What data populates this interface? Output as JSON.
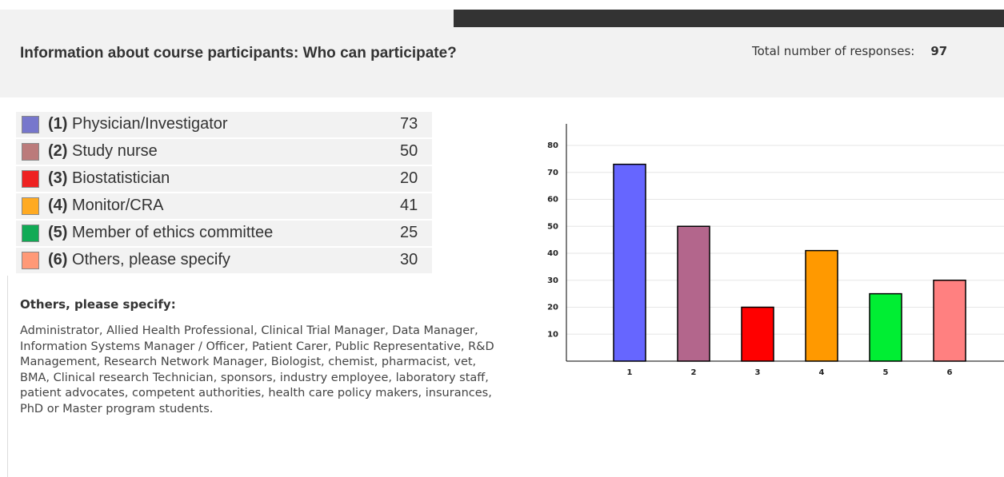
{
  "header": {
    "title": "Information about course participants: Who can participate?",
    "responses_label": "Total number of responses:",
    "responses_value": "97"
  },
  "options": [
    {
      "number": "(1)",
      "label": "Physician/Investigator",
      "count": "73",
      "color": "#7777cc"
    },
    {
      "number": "(2)",
      "label": "Study nurse",
      "count": "50",
      "color": "#bb7b7b"
    },
    {
      "number": "(3)",
      "label": "Biostatistician",
      "count": "20",
      "color": "#ee2222"
    },
    {
      "number": "(4)",
      "label": "Monitor/CRA",
      "count": "41",
      "color": "#ffaa22"
    },
    {
      "number": "(5)",
      "label": "Member of ethics committee",
      "count": "25",
      "color": "#11aa55"
    },
    {
      "number": "(6)",
      "label": "Others, please specify",
      "count": "30",
      "color": "#ff9977"
    }
  ],
  "others": {
    "heading": "Others, please specify:",
    "text": "Administrator, Allied Health Professional, Clinical Trial Manager, Data Manager, Information Systems Manager / Officer, Patient Carer, Public Representative, R&D Management, Research Network Manager, Biologist, chemist, pharmacist, vet, BMA, Clinical research Technician, sponsors, industry employee, laboratory staff, patient advocates, competent authorities, health care policy makers, insurances, PhD or Master program students."
  },
  "chart_data": {
    "type": "bar",
    "categories": [
      "1",
      "2",
      "3",
      "4",
      "5",
      "6"
    ],
    "values": [
      73,
      50,
      20,
      41,
      25,
      30
    ],
    "colors": [
      "#6666ff",
      "#b3668c",
      "#ff0000",
      "#ff9900",
      "#00ee33",
      "#ff8080"
    ],
    "ylim": [
      0,
      88
    ],
    "yticks": [
      10,
      20,
      30,
      40,
      50,
      60,
      70,
      80
    ],
    "grid": true
  }
}
